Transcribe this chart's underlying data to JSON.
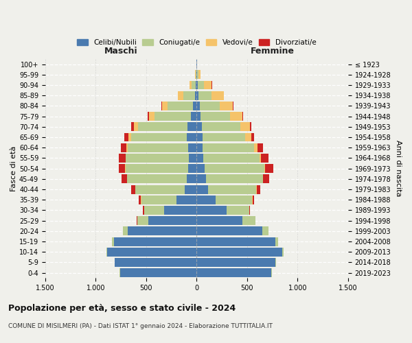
{
  "age_groups": [
    "0-4",
    "5-9",
    "10-14",
    "15-19",
    "20-24",
    "25-29",
    "30-34",
    "35-39",
    "40-44",
    "45-49",
    "50-54",
    "55-59",
    "60-64",
    "65-69",
    "70-74",
    "75-79",
    "80-84",
    "85-89",
    "90-94",
    "95-99",
    "100+"
  ],
  "birth_years": [
    "2019-2023",
    "2014-2018",
    "2009-2013",
    "2004-2008",
    "1999-2003",
    "1994-1998",
    "1989-1993",
    "1984-1988",
    "1979-1983",
    "1974-1978",
    "1969-1973",
    "1964-1968",
    "1959-1963",
    "1954-1958",
    "1949-1953",
    "1944-1948",
    "1939-1943",
    "1934-1938",
    "1929-1933",
    "1924-1928",
    "≤ 1923"
  ],
  "maschi": {
    "celibe": [
      760,
      810,
      890,
      820,
      680,
      480,
      320,
      200,
      120,
      100,
      85,
      80,
      85,
      100,
      90,
      60,
      35,
      15,
      8,
      3,
      2
    ],
    "coniugato": [
      2,
      2,
      5,
      20,
      50,
      110,
      200,
      350,
      490,
      590,
      620,
      620,
      600,
      550,
      490,
      360,
      250,
      120,
      40,
      8,
      2
    ],
    "vedovo": [
      0,
      0,
      0,
      0,
      0,
      0,
      0,
      1,
      1,
      2,
      3,
      5,
      10,
      25,
      40,
      50,
      60,
      50,
      20,
      5,
      1
    ],
    "divorziato": [
      0,
      0,
      0,
      0,
      1,
      3,
      10,
      20,
      35,
      50,
      65,
      65,
      55,
      40,
      30,
      15,
      5,
      2,
      1,
      0,
      0
    ]
  },
  "femmine": {
    "nubile": [
      740,
      780,
      850,
      780,
      650,
      450,
      300,
      190,
      110,
      95,
      80,
      65,
      60,
      60,
      55,
      40,
      30,
      20,
      10,
      3,
      2
    ],
    "coniugata": [
      3,
      5,
      10,
      25,
      60,
      130,
      220,
      360,
      480,
      560,
      590,
      560,
      510,
      420,
      380,
      290,
      200,
      130,
      60,
      15,
      2
    ],
    "vedova": [
      0,
      0,
      0,
      0,
      0,
      0,
      1,
      2,
      3,
      5,
      8,
      15,
      30,
      60,
      90,
      120,
      130,
      120,
      80,
      20,
      3
    ],
    "divorziata": [
      0,
      0,
      0,
      0,
      1,
      3,
      8,
      20,
      40,
      60,
      80,
      75,
      55,
      30,
      20,
      10,
      5,
      3,
      2,
      0,
      0
    ]
  },
  "colors": {
    "celibe_nubile": "#4a7aaf",
    "coniugato": "#b8cc90",
    "vedovo": "#f5c36a",
    "divorziato": "#cc2222"
  },
  "xlim": 1500,
  "title_main": "Popolazione per età, sesso e stato civile - 2024",
  "title_sub": "COMUNE DI MISILMERI (PA) - Dati ISTAT 1° gennaio 2024 - Elaborazione TUTTITALIA.IT",
  "legend_labels": [
    "Celibi/Nubili",
    "Coniugati/e",
    "Vedovi/e",
    "Divorziati/e"
  ],
  "xlabel_left": "Maschi",
  "xlabel_right": "Femmine",
  "ylabel_left": "Fasce di età",
  "ylabel_right": "Anni di nascita",
  "background_color": "#f0f0eb"
}
